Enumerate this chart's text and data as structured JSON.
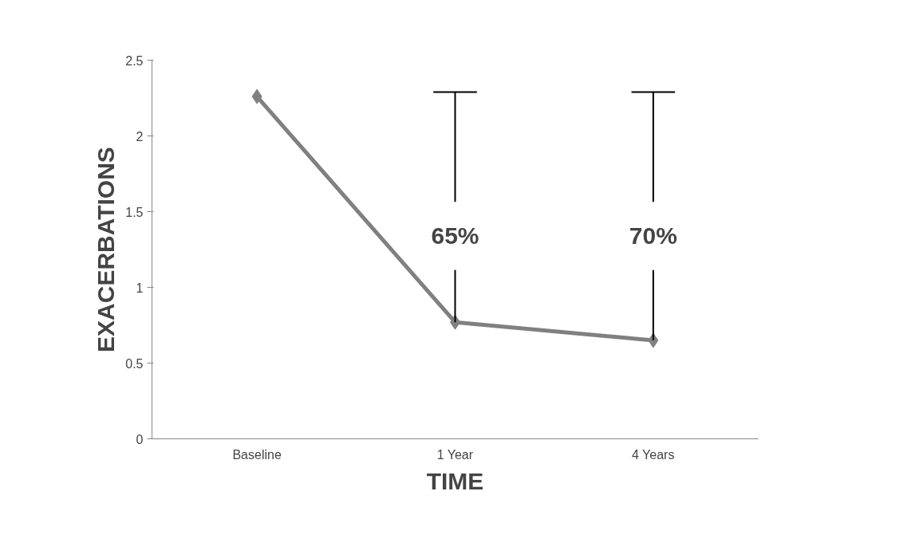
{
  "chart_data": {
    "type": "line",
    "xlabel": "TIME",
    "ylabel": "EXACERBATIONS",
    "categories": [
      "Baseline",
      "1 Year",
      "4 Years"
    ],
    "series": [
      {
        "color": "#808080",
        "values": [
          2.26,
          0.77,
          0.65
        ],
        "errors": [
          null,
          [
            0.77,
            2.29
          ],
          [
            0.65,
            2.29
          ]
        ]
      }
    ],
    "ylim": [
      0,
      2.5
    ],
    "yticks": [
      0,
      0.5,
      1,
      1.5,
      2,
      2.5
    ],
    "marker": "diamond",
    "grid": false,
    "annotations": [
      "65%",
      "70%"
    ]
  }
}
